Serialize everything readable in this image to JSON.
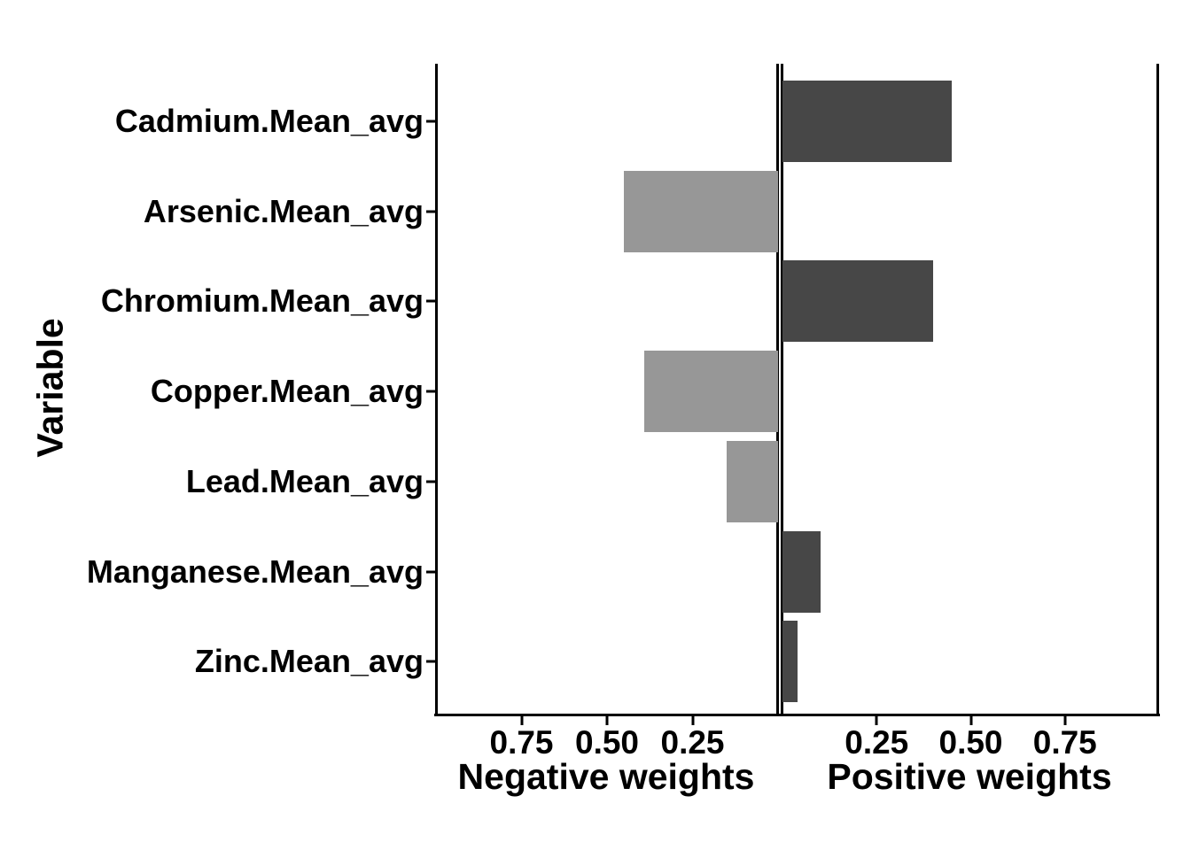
{
  "chart_data": {
    "type": "bar",
    "orientation": "horizontal-diverging",
    "title": "",
    "y_axis_title": "Variable",
    "facets": {
      "negative": {
        "label": "Negative weights"
      },
      "positive": {
        "label": "Positive weights"
      }
    },
    "categories": [
      "Cadmium.Mean_avg",
      "Arsenic.Mean_avg",
      "Chromium.Mean_avg",
      "Copper.Mean_avg",
      "Lead.Mean_avg",
      "Manganese.Mean_avg",
      "Zinc.Mean_avg"
    ],
    "values": [
      0.45,
      -0.45,
      0.4,
      -0.39,
      -0.15,
      0.1,
      0.04
    ],
    "x_ticks": [
      {
        "panel": "negative",
        "value": 0.75,
        "label": "0.75"
      },
      {
        "panel": "negative",
        "value": 0.5,
        "label": "0.50"
      },
      {
        "panel": "negative",
        "value": 0.25,
        "label": "0.25"
      },
      {
        "panel": "positive",
        "value": 0.25,
        "label": "0.25"
      },
      {
        "panel": "positive",
        "value": 0.5,
        "label": "0.50"
      },
      {
        "panel": "positive",
        "value": 0.75,
        "label": "0.75"
      }
    ],
    "x_range_per_panel": [
      0,
      1
    ],
    "grid": false,
    "legend": false,
    "colors": {
      "positive_bar": "#474747",
      "negative_bar": "#979797",
      "axis": "#000000",
      "background": "#ffffff"
    }
  }
}
